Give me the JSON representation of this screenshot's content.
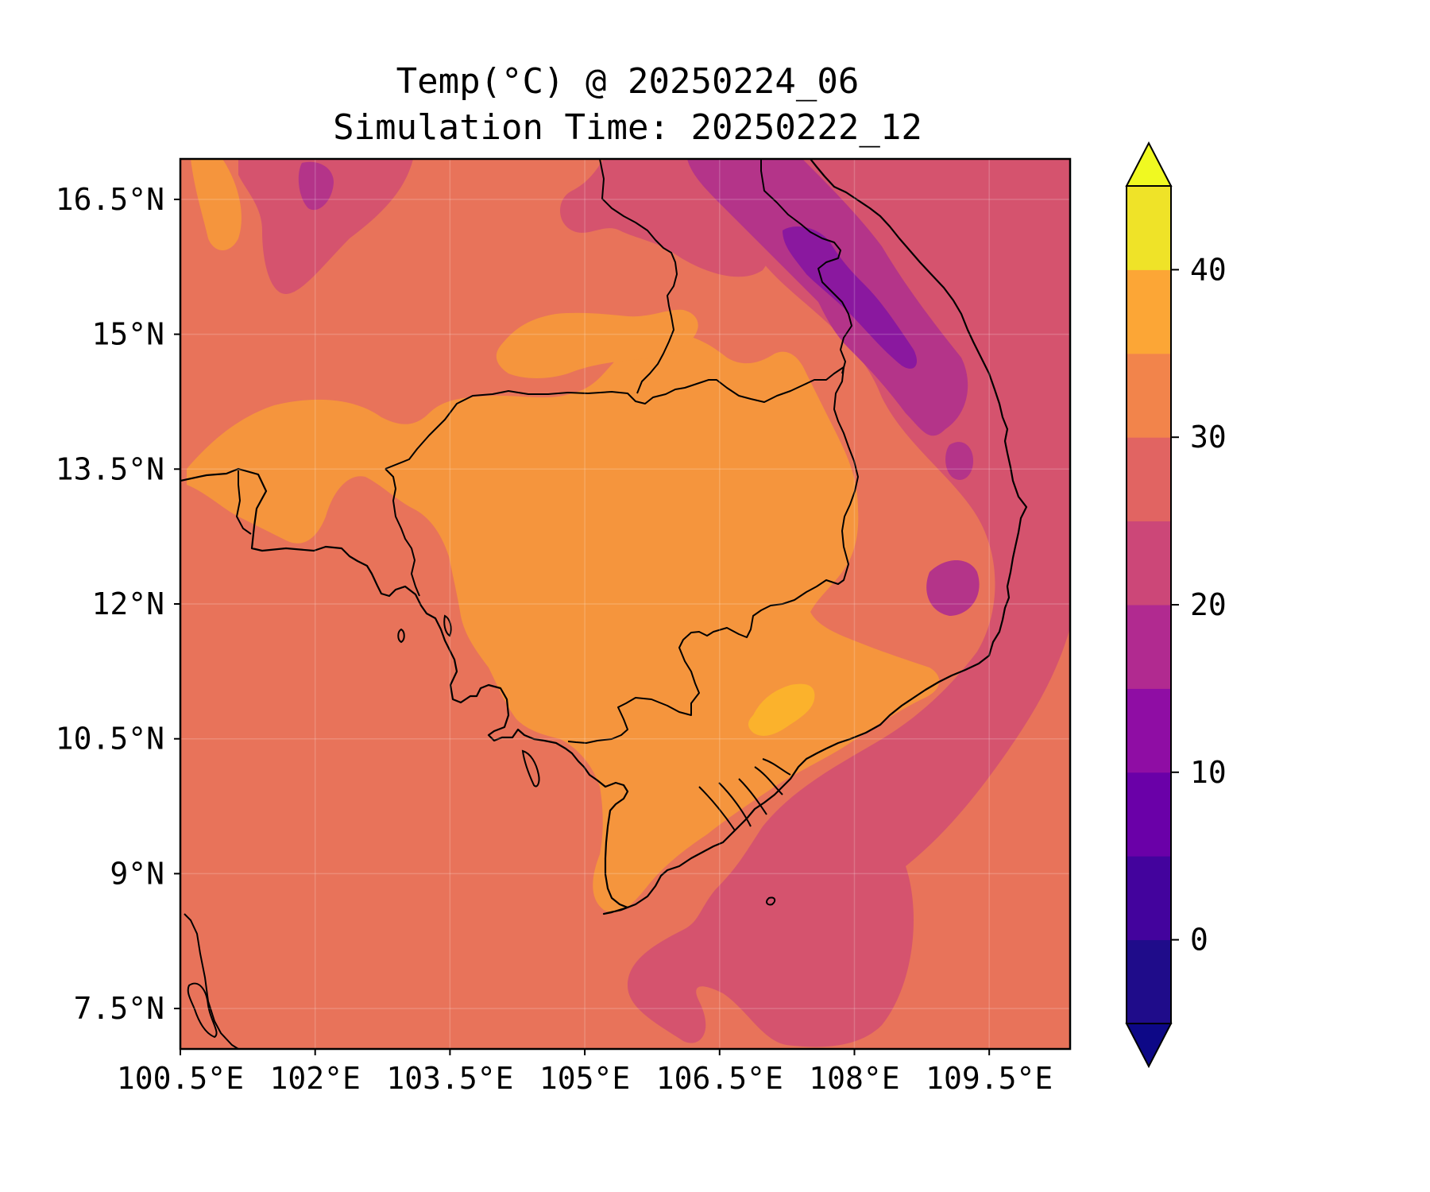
{
  "title": {
    "line1": "Temp(°C) @ 20250224_06",
    "line2": "Simulation Time: 20250222_12"
  },
  "map": {
    "region": "Cambodia / southern Vietnam / Gulf of Thailand",
    "lon_ticks": [
      {
        "value": 100.5,
        "label": "100.5°E"
      },
      {
        "value": 102,
        "label": "102°E"
      },
      {
        "value": 103.5,
        "label": "103.5°E"
      },
      {
        "value": 105,
        "label": "105°E"
      },
      {
        "value": 106.5,
        "label": "106.5°E"
      },
      {
        "value": 108,
        "label": "108°E"
      },
      {
        "value": 109.5,
        "label": "109.5°E"
      }
    ],
    "lat_ticks": [
      {
        "value": 16.5,
        "label": "16.5°N"
      },
      {
        "value": 15,
        "label": "15°N"
      },
      {
        "value": 13.5,
        "label": "13.5°N"
      },
      {
        "value": 12,
        "label": "12°N"
      },
      {
        "value": 10.5,
        "label": "10.5°N"
      },
      {
        "value": 9,
        "label": "9°N"
      },
      {
        "value": 7.5,
        "label": "7.5°N"
      }
    ],
    "extent": {
      "lon_min": 100.5,
      "lon_max": 110.4,
      "lat_min": 7.05,
      "lat_max": 16.95
    }
  },
  "colorbar": {
    "levels": [
      -5,
      0,
      5,
      10,
      15,
      20,
      25,
      30,
      35,
      40,
      45
    ],
    "colors": [
      "#1f0c8a",
      "#43039d",
      "#6a00a8",
      "#8f0da4",
      "#b12a90",
      "#cc4778",
      "#e16462",
      "#f2844b",
      "#fca636",
      "#efe328"
    ],
    "under_color": "#0d0887",
    "over_color": "#f0f921",
    "ticks": [
      {
        "value": 0,
        "label": "0"
      },
      {
        "value": 10,
        "label": "10"
      },
      {
        "value": 20,
        "label": "20"
      },
      {
        "value": 30,
        "label": "30"
      },
      {
        "value": 40,
        "label": "40"
      }
    ]
  },
  "colors": {
    "land_warm": "#f5953d",
    "base_field": "#e8735a",
    "cool_zone": "#d5536e",
    "cold_zone": "#b43489",
    "coldest_zone": "#8a189f",
    "hot_spot": "#fbb22c",
    "coastline": "#000000"
  }
}
